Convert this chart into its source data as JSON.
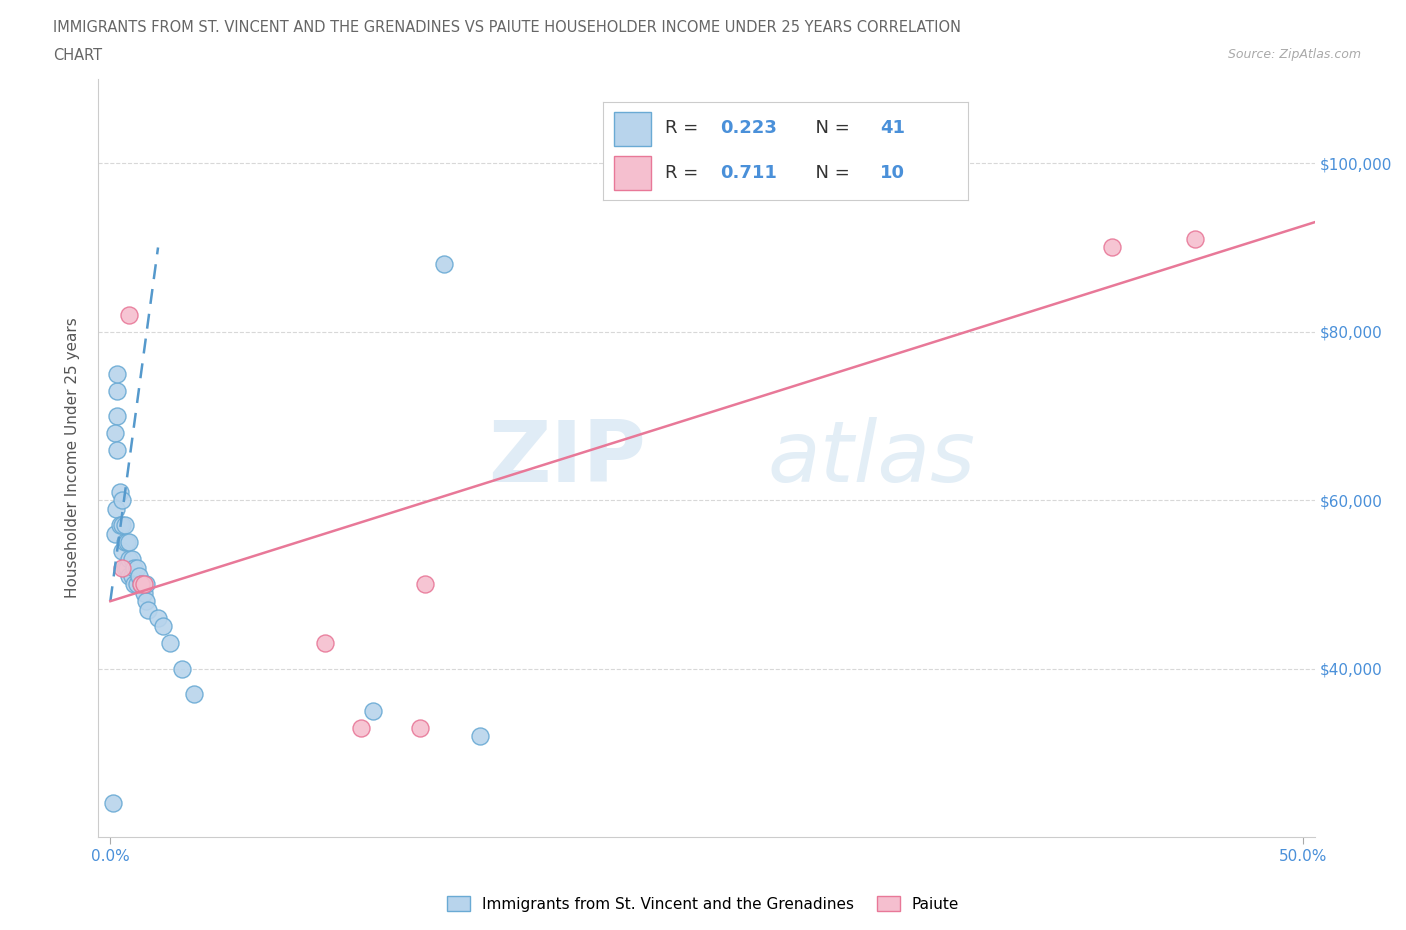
{
  "title_line1": "IMMIGRANTS FROM ST. VINCENT AND THE GRENADINES VS PAIUTE HOUSEHOLDER INCOME UNDER 25 YEARS CORRELATION",
  "title_line2": "CHART",
  "source_text": "Source: ZipAtlas.com",
  "ylabel": "Householder Income Under 25 years",
  "xlim": [
    -0.005,
    0.505
  ],
  "ylim": [
    20000,
    110000
  ],
  "yticks": [
    40000,
    60000,
    80000,
    100000
  ],
  "ytick_labels": [
    "$40,000",
    "$60,000",
    "$80,000",
    "$100,000"
  ],
  "xticks": [
    0.0,
    0.5
  ],
  "xtick_labels": [
    "0.0%",
    "50.0%"
  ],
  "watermark_zip": "ZIP",
  "watermark_atlas": "atlas",
  "legend_label_blue": "Immigrants from St. Vincent and the Grenadines",
  "legend_label_pink": "Paiute",
  "R_blue": "0.223",
  "N_blue": "41",
  "R_pink": "0.711",
  "N_pink": "10",
  "color_blue_face": "#b8d4ec",
  "color_pink_face": "#f5bfcf",
  "color_blue_edge": "#6aaad4",
  "color_pink_edge": "#e87898",
  "color_blue_line": "#5599cc",
  "color_pink_line": "#e87898",
  "title_color": "#666666",
  "axis_tick_color": "#4a90d9",
  "grid_color": "#d8d8d8",
  "blue_scatter_x": [
    0.001,
    0.0018,
    0.0022,
    0.0028,
    0.003,
    0.003,
    0.004,
    0.004,
    0.005,
    0.005,
    0.005,
    0.006,
    0.006,
    0.006,
    0.007,
    0.007,
    0.008,
    0.008,
    0.008,
    0.009,
    0.009,
    0.01,
    0.01,
    0.011,
    0.011,
    0.012,
    0.013,
    0.014,
    0.015,
    0.015,
    0.016,
    0.02,
    0.022,
    0.025,
    0.03,
    0.035,
    0.11,
    0.14,
    0.155,
    0.002,
    0.003
  ],
  "blue_scatter_y": [
    24000,
    56000,
    59000,
    70000,
    73000,
    75000,
    57000,
    61000,
    54000,
    57000,
    60000,
    52000,
    55000,
    57000,
    52000,
    55000,
    51000,
    53000,
    55000,
    51000,
    53000,
    50000,
    52000,
    50000,
    52000,
    51000,
    50000,
    49000,
    48000,
    50000,
    47000,
    46000,
    45000,
    43000,
    40000,
    37000,
    35000,
    88000,
    32000,
    68000,
    66000
  ],
  "pink_scatter_x": [
    0.005,
    0.008,
    0.013,
    0.014,
    0.09,
    0.105,
    0.13,
    0.132,
    0.42,
    0.455
  ],
  "pink_scatter_y": [
    52000,
    82000,
    50000,
    50000,
    43000,
    33000,
    33000,
    50000,
    90000,
    91000
  ],
  "blue_line_x": [
    0.0,
    0.02
  ],
  "blue_line_y": [
    48000,
    90000
  ],
  "pink_line_x": [
    0.0,
    0.505
  ],
  "pink_line_y": [
    48000,
    93000
  ]
}
